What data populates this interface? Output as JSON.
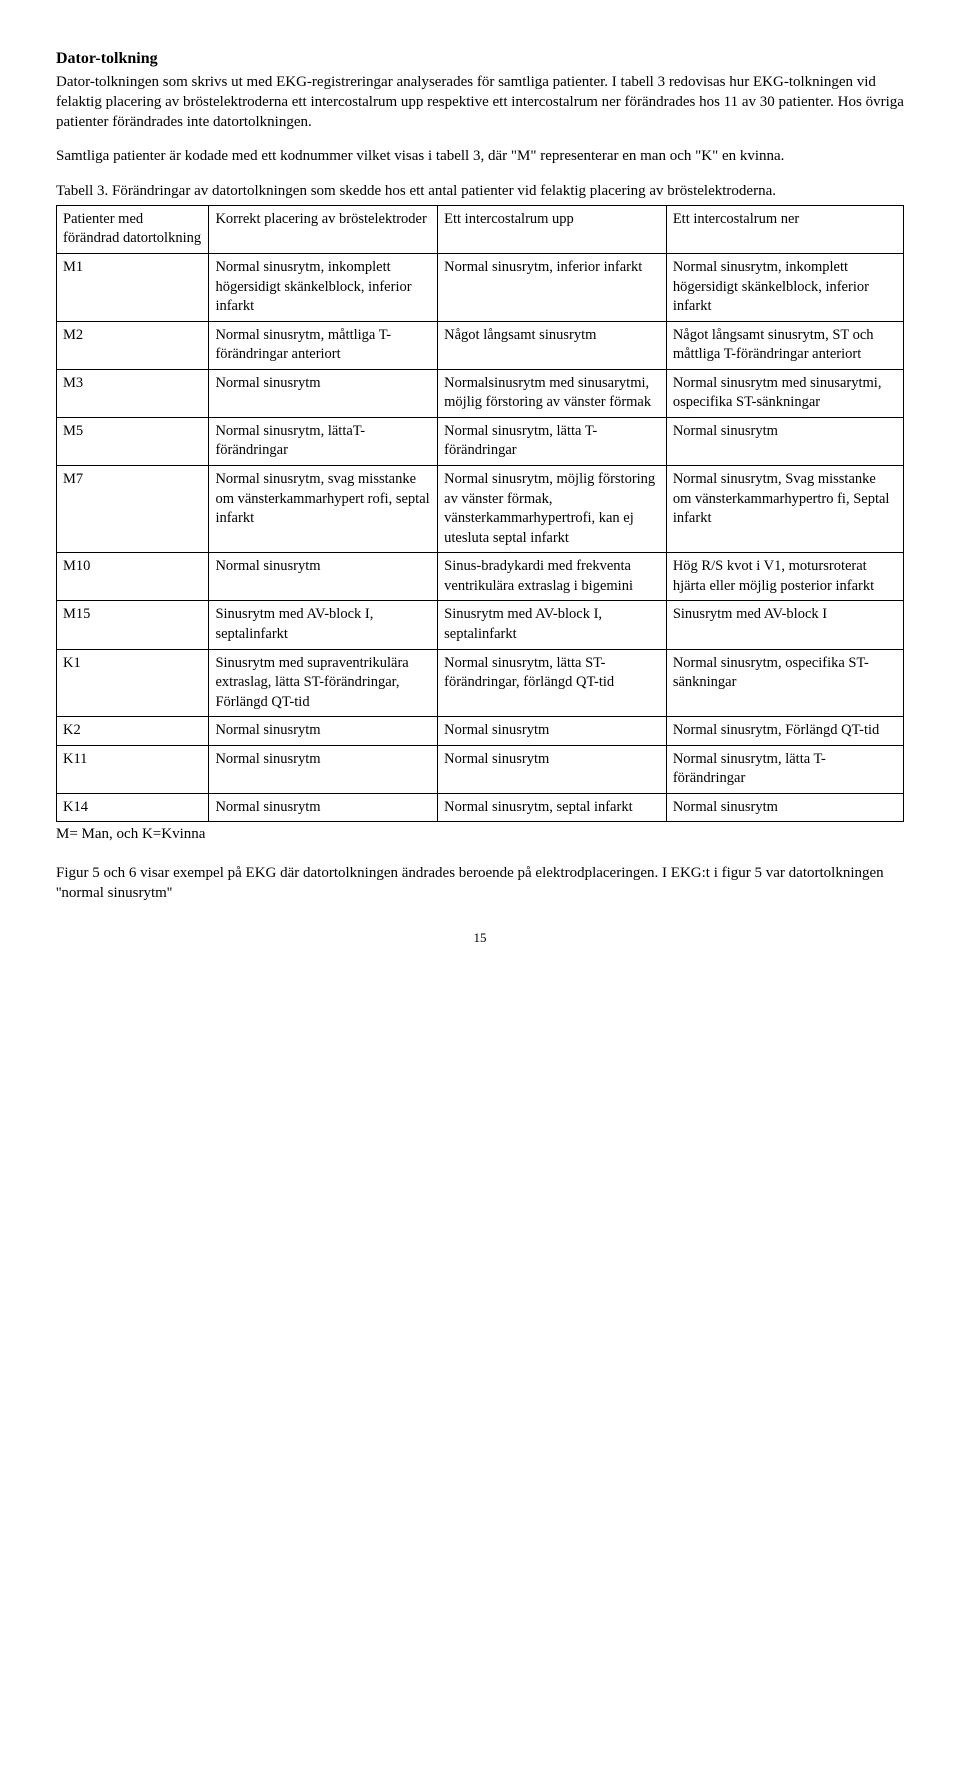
{
  "heading": "Dator-tolkning",
  "para1": "Dator-tolkningen som skrivs ut med EKG-registreringar analyserades för samtliga patienter. I tabell 3 redovisas hur EKG-tolkningen vid felaktig placering av bröstelektroderna ett intercostalrum upp respektive ett intercostalrum ner förändrades hos 11 av 30 patienter. Hos övriga patienter förändrades inte datortolkningen.",
  "para2": "Samtliga patienter är kodade med ett kodnummer vilket visas i tabell 3, där \"M\" representerar en man och \"K\" en kvinna.",
  "caption": "Tabell 3. Förändringar av datortolkningen som skedde hos ett antal patienter vid felaktig placering av bröstelektroderna.",
  "headers": [
    "Patienter med förändrad datortolkning",
    "Korrekt placering av bröstelektroder",
    "Ett intercostalrum upp",
    "Ett intercostalrum ner"
  ],
  "rows": [
    [
      "M1",
      "Normal sinusrytm, inkomplett högersidigt skänkelblock, inferior infarkt",
      "Normal sinusrytm, inferior infarkt",
      "Normal sinusrytm, inkomplett högersidigt skänkelblock, inferior infarkt"
    ],
    [
      "M2",
      "Normal sinusrytm, måttliga T-förändringar anteriort",
      "Något långsamt sinusrytm",
      "Något långsamt sinusrytm, ST och måttliga T-förändringar anteriort"
    ],
    [
      "M3",
      "Normal sinusrytm",
      "Normalsinusrytm med sinusarytmi, möjlig förstoring av vänster förmak",
      "Normal sinusrytm med sinusarytmi, ospecifika ST-sänkningar"
    ],
    [
      "M5",
      "Normal sinusrytm, lättaT-förändringar",
      "Normal sinusrytm, lätta T-förändringar",
      "Normal sinusrytm"
    ],
    [
      "M7",
      "Normal sinusrytm, svag misstanke om vänsterkammarhypert rofi, septal infarkt",
      "Normal sinusrytm, möjlig förstoring av vänster förmak, vänsterkammarhypertrofi, kan ej utesluta septal infarkt",
      "Normal sinusrytm, Svag misstanke om vänsterkammarhypertro fi, Septal infarkt"
    ],
    [
      "M10",
      "Normal sinusrytm",
      "Sinus-bradykardi med frekventa ventrikulära extraslag i bigemini",
      "Hög R/S kvot i V1, motursroterat hjärta eller möjlig posterior infarkt"
    ],
    [
      "M15",
      "Sinusrytm med AV-block I, septalinfarkt",
      "Sinusrytm med AV-block I, septalinfarkt",
      "Sinusrytm med AV-block I"
    ],
    [
      "K1",
      "Sinusrytm med supraventrikulära extraslag, lätta ST-förändringar, Förlängd QT-tid",
      "Normal sinusrytm, lätta ST-förändringar, förlängd QT-tid",
      "Normal sinusrytm, ospecifika ST-sänkningar"
    ],
    [
      "K2",
      "Normal sinusrytm",
      "Normal sinusrytm",
      "Normal sinusrytm, Förlängd QT-tid"
    ],
    [
      "K11",
      "Normal sinusrytm",
      "Normal sinusrytm",
      "Normal sinusrytm, lätta T-förändringar"
    ],
    [
      "K14",
      "Normal sinusrytm",
      "Normal sinusrytm, septal infarkt",
      "Normal sinusrytm"
    ]
  ],
  "legend": "M= Man, och K=Kvinna",
  "para3": "Figur 5 och 6 visar exempel på EKG där datortolkningen ändrades beroende på elektrodplaceringen. I EKG:t i figur 5 var datortolkningen ''normal sinusrytm''",
  "page_number": "15"
}
